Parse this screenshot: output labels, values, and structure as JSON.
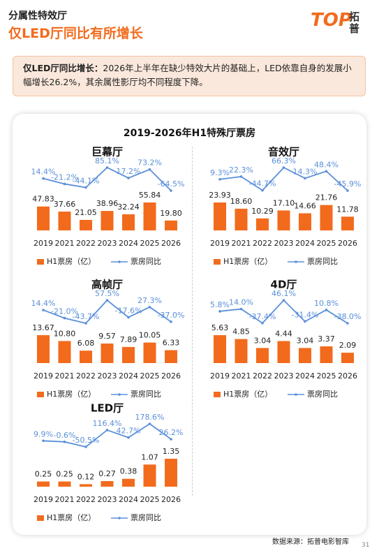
{
  "header": {
    "section": "分属性特效厅",
    "title": "仅LED厅同比有所增长",
    "logo": "TOP",
    "brand": "拓普"
  },
  "callout": {
    "label": "仅LED厅同比增长：",
    "text": "2026年上半年在缺少特效大片的基础上，LED依靠自身的发展小幅增长26.2%，其余属性影厅均不同程度下降。"
  },
  "panel_title": "2019-2026年H1特殊厅票房",
  "chart_data": [
    {
      "type": "bar-line",
      "title": "巨幕厅",
      "categories": [
        "2019",
        "2021",
        "2022",
        "2023",
        "2024",
        "2025",
        "2026"
      ],
      "series": [
        {
          "name": "H1票房（亿）",
          "color": "#f26b1d",
          "values": [
            47.83,
            37.66,
            21.05,
            38.96,
            32.24,
            55.84,
            19.8
          ],
          "value_labels": [
            "47.83",
            "37.66",
            "21.05",
            "38.96",
            "32.24",
            "55.84",
            "19.80"
          ]
        },
        {
          "name": "票房同比",
          "color": "#5b8fd9",
          "values": [
            14.4,
            -21.2,
            -44.1,
            85.1,
            17.2,
            73.2,
            -64.5
          ],
          "value_labels": [
            "14.4%",
            "-21.2%",
            "-44.1%",
            "85.1%",
            "17.2%",
            "73.2%",
            "-64.5%"
          ]
        }
      ]
    },
    {
      "type": "bar-line",
      "title": "音效厅",
      "categories": [
        "2019",
        "2021",
        "2022",
        "2023",
        "2024",
        "2025",
        "2026"
      ],
      "series": [
        {
          "name": "H1票房（亿）",
          "color": "#f26b1d",
          "values": [
            23.93,
            18.6,
            10.29,
            17.1,
            14.66,
            21.76,
            11.78
          ],
          "value_labels": [
            "23.93",
            "18.60",
            "10.29",
            "17.10",
            "14.66",
            "21.76",
            "11.78"
          ]
        },
        {
          "name": "票房同比",
          "color": "#5b8fd9",
          "values": [
            9.3,
            22.3,
            -44.7,
            66.3,
            14.3,
            48.4,
            -45.9
          ],
          "value_labels": [
            "9.3%",
            "22.3%",
            "-44.7%",
            "66.3%",
            "14.3%",
            "48.4%",
            "-45.9%"
          ]
        }
      ]
    },
    {
      "type": "bar-line",
      "title": "高帧厅",
      "categories": [
        "2019",
        "2021",
        "2022",
        "2023",
        "2024",
        "2025",
        "2026"
      ],
      "series": [
        {
          "name": "H1票房（亿）",
          "color": "#f26b1d",
          "values": [
            13.67,
            10.8,
            6.08,
            9.57,
            7.89,
            10.05,
            6.33
          ],
          "value_labels": [
            "13.67",
            "10.80",
            "6.08",
            "9.57",
            "7.89",
            "10.05",
            "6.33"
          ]
        },
        {
          "name": "票房同比",
          "color": "#5b8fd9",
          "values": [
            14.4,
            -21.0,
            -43.7,
            57.5,
            -17.6,
            27.3,
            -37.0
          ],
          "value_labels": [
            "14.4%",
            "-21.0%",
            "-43.7%",
            "57.5%",
            "-17.6%",
            "27.3%",
            "-37.0%"
          ]
        }
      ]
    },
    {
      "type": "bar-line",
      "title": "4D厅",
      "categories": [
        "2019",
        "2021",
        "2022",
        "2023",
        "2024",
        "2025",
        "2026"
      ],
      "series": [
        {
          "name": "H1票房（亿）",
          "color": "#f26b1d",
          "values": [
            5.63,
            4.85,
            3.04,
            4.44,
            3.04,
            3.37,
            2.09
          ],
          "value_labels": [
            "5.63",
            "4.85",
            "3.04",
            "4.44",
            "3.04",
            "3.37",
            "2.09"
          ]
        },
        {
          "name": "票房同比",
          "color": "#5b8fd9",
          "values": [
            5.8,
            14.0,
            -37.4,
            46.1,
            -31.4,
            10.8,
            -38.0
          ],
          "value_labels": [
            "5.8%",
            "14.0%",
            "-37.4%",
            "46.1%",
            "-31.4%",
            "10.8%",
            "-38.0%"
          ]
        }
      ]
    },
    {
      "type": "bar-line",
      "title": "LED厅",
      "categories": [
        "2019",
        "2021",
        "2022",
        "2023",
        "2024",
        "2025",
        "2026"
      ],
      "series": [
        {
          "name": "H1票房（亿）",
          "color": "#f26b1d",
          "values": [
            0.25,
            0.25,
            0.12,
            0.27,
            0.38,
            1.07,
            1.35
          ],
          "value_labels": [
            "0.25",
            "0.25",
            "0.12",
            "0.27",
            "0.38",
            "1.07",
            "1.35"
          ]
        },
        {
          "name": "票房同比",
          "color": "#5b8fd9",
          "values": [
            9.9,
            -0.6,
            -50.5,
            116.4,
            42.7,
            178.6,
            26.2
          ],
          "value_labels": [
            "9.9%",
            "-0.6%",
            "-50.5%",
            "116.4%",
            "42.7%",
            "178.6%",
            "26.2%"
          ]
        }
      ]
    }
  ],
  "footer": {
    "source": "数据来源：拓普电影智库",
    "page": "31"
  }
}
